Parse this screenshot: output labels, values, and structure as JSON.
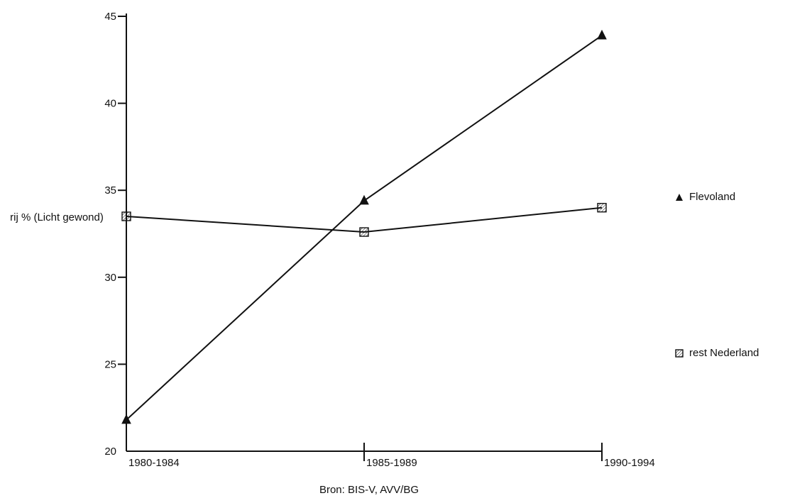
{
  "chart_data": {
    "type": "line",
    "categories": [
      "1980-1984",
      "1985-1989",
      "1990-1994"
    ],
    "series": [
      {
        "name": "Flevoland",
        "values": [
          21.8,
          34.4,
          43.9
        ],
        "marker": "triangle",
        "color": "#111111"
      },
      {
        "name": "rest Nederland",
        "values": [
          33.5,
          32.6,
          34.0
        ],
        "marker": "hatched-square",
        "color": "#111111"
      }
    ],
    "ylabel": "rij % (Licht gewond)",
    "ylim": [
      20,
      45
    ],
    "yticks": [
      "20",
      "25",
      "30",
      "35",
      "40",
      "45"
    ],
    "grid": false,
    "legend_position": "right"
  },
  "source": "Bron: BIS-V, AVV/BG"
}
